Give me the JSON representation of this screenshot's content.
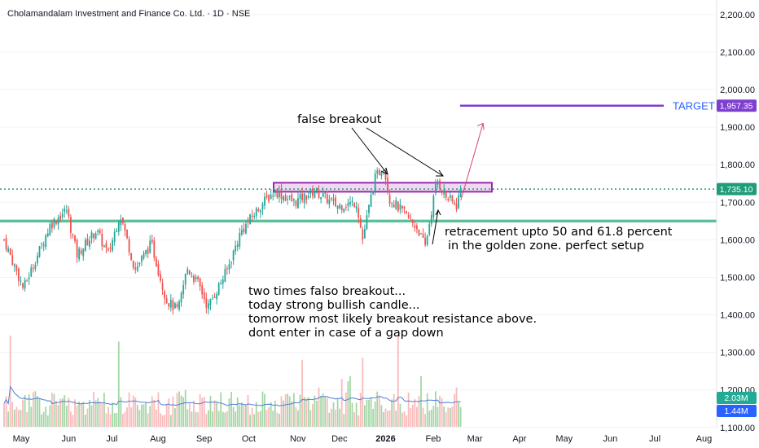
{
  "title": "Cholamandalam Investment and Finance Co. Ltd. · 1D · NSE",
  "colors": {
    "up": "#26a69a",
    "down": "#ef5350",
    "vol_up": "#a5d6a7",
    "vol_down": "#f8bbbb",
    "support": "#5cc09a",
    "resistance_box": "#9c27b0",
    "target_line": "#7e3fd1",
    "ma": "#4f7fd6",
    "arrow": "#d6456b",
    "price_line": "#1f9c7a",
    "target_badge": "#7e3fd1",
    "axis_text": "#131722"
  },
  "chart_data": {
    "type": "candlestick",
    "symbol": "Cholamandalam Investment and Finance Co. Ltd.",
    "interval": "1D",
    "exchange": "NSE",
    "x_ticks": [
      "May",
      "Jun",
      "Jul",
      "Aug",
      "Sep",
      "Oct",
      "Nov",
      "Dec",
      "2026",
      "Feb",
      "Mar",
      "Apr",
      "May",
      "Jun",
      "Jul",
      "Aug"
    ],
    "y_ticks": [
      "2,200.00",
      "2,100.00",
      "2,000.00",
      "1,900.00",
      "1,800.00",
      "1,700.00",
      "1,600.00",
      "1,500.00",
      "1,400.00",
      "1,300.00",
      "1,200.00",
      "1,100.00"
    ],
    "y_range": [
      1100,
      2200
    ],
    "price_path": [
      {
        "date": "2025-04-25",
        "close": 1600
      },
      {
        "date": "2025-05-08",
        "close": 1470
      },
      {
        "date": "2025-05-26",
        "close": 1640
      },
      {
        "date": "2025-06-06",
        "close": 1680
      },
      {
        "date": "2025-06-13",
        "close": 1560
      },
      {
        "date": "2025-06-26",
        "close": 1625
      },
      {
        "date": "2025-07-04",
        "close": 1560
      },
      {
        "date": "2025-07-12",
        "close": 1670
      },
      {
        "date": "2025-07-22",
        "close": 1520
      },
      {
        "date": "2025-08-02",
        "close": 1590
      },
      {
        "date": "2025-08-12",
        "close": 1440
      },
      {
        "date": "2025-08-20",
        "close": 1410
      },
      {
        "date": "2025-08-26",
        "close": 1525
      },
      {
        "date": "2025-09-03",
        "close": 1480
      },
      {
        "date": "2025-09-09",
        "close": 1420
      },
      {
        "date": "2025-09-22",
        "close": 1520
      },
      {
        "date": "2025-10-01",
        "close": 1620
      },
      {
        "date": "2025-10-14",
        "close": 1690
      },
      {
        "date": "2025-10-24",
        "close": 1730
      },
      {
        "date": "2025-11-06",
        "close": 1700
      },
      {
        "date": "2025-11-20",
        "close": 1730
      },
      {
        "date": "2025-12-05",
        "close": 1690
      },
      {
        "date": "2025-12-18",
        "close": 1700
      },
      {
        "date": "2025-12-22",
        "close": 1600
      },
      {
        "date": "2025-12-30",
        "close": 1760
      },
      {
        "date": "2026-01-05",
        "close": 1800
      },
      {
        "date": "2026-01-09",
        "close": 1710
      },
      {
        "date": "2026-01-19",
        "close": 1670
      },
      {
        "date": "2026-01-28",
        "close": 1630
      },
      {
        "date": "2026-02-02",
        "close": 1580
      },
      {
        "date": "2026-02-10",
        "close": 1760
      },
      {
        "date": "2026-02-16",
        "close": 1715
      },
      {
        "date": "2026-02-23",
        "close": 1690
      },
      {
        "date": "2026-02-26",
        "close": 1735
      }
    ],
    "volume_labels": [
      "2.03M",
      "1.44M"
    ],
    "current_price": "1,735.10",
    "target_price": "1,957.35",
    "target_label": "TARGET",
    "support_level": 1650,
    "resistance_zone": [
      1728,
      1752
    ],
    "projection": {
      "from": {
        "date": "2026-02-26",
        "price": 1705
      },
      "to": {
        "date": "2026-03-13",
        "price": 1910
      }
    },
    "annotations": {
      "false_breakout": "false breakout",
      "retracement_line1": "retracement upto 50 and 61.8 percent",
      "retracement_line2": "in the golden zone. perfect setup",
      "note_line1": "two times falso breakout...",
      "note_line2": "today strong bullish candle...",
      "note_line3": "tomorrow most likely breakout resistance above.",
      "note_line4": "dont enter in case of a gap down"
    }
  }
}
